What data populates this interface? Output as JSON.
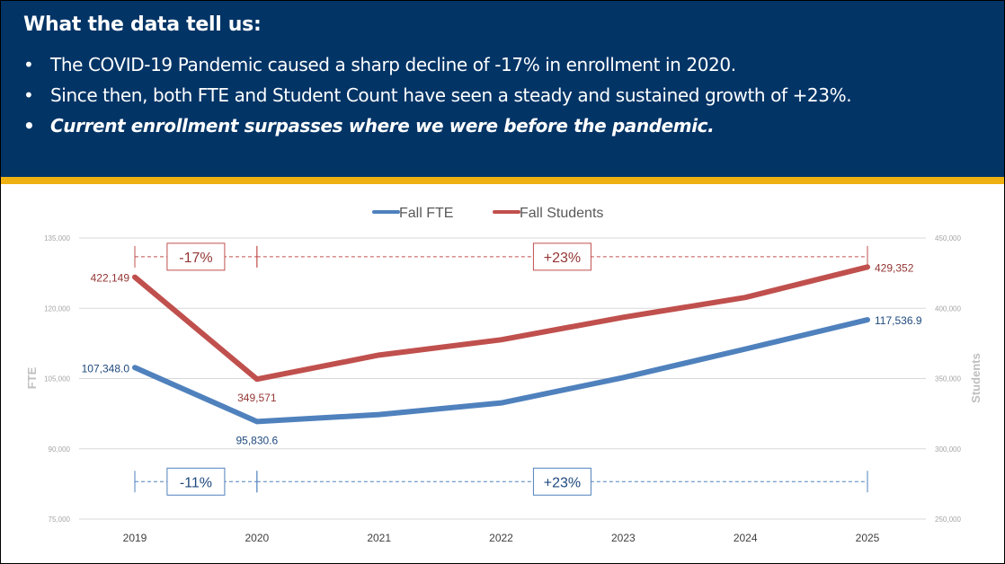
{
  "banner": {
    "title": "What the data tell us:",
    "bullets": [
      {
        "bullet": "•",
        "text": "The COVID-19 Pandemic caused a sharp decline of -17% in enrollment in 2020."
      },
      {
        "bullet": "•",
        "text": "Since then, both FTE and Student Count have seen a steady and sustained growth of +23%."
      },
      {
        "bullet": "•",
        "text": "Current enrollment surpasses where we were before the pandemic."
      }
    ],
    "colors": {
      "background": "#023466",
      "stripe": "#EEB111"
    }
  },
  "chart_data": {
    "type": "line",
    "title": "",
    "categories": [
      "2019",
      "2020",
      "2021",
      "2022",
      "2023",
      "2024",
      "2025"
    ],
    "series": [
      {
        "name": "Fall FTE",
        "axis": "left",
        "color": "#4F81BD",
        "label_color": "#1F497D",
        "values": [
          107348.0,
          95830.6,
          97300,
          99800,
          105200,
          111300,
          117536.9
        ],
        "data_labels": [
          "107,348.0",
          "95,830.6",
          null,
          null,
          null,
          null,
          "117,536.9"
        ]
      },
      {
        "name": "Fall Students",
        "axis": "right",
        "color": "#C0504D",
        "label_color": "#943634",
        "values": [
          422149,
          349571,
          366700,
          377600,
          393600,
          407700,
          429352
        ],
        "data_labels": [
          "422,149",
          "349,571",
          null,
          null,
          null,
          null,
          "429,352"
        ]
      }
    ],
    "ylabel": "FTE",
    "y2label": "Students",
    "ylim": [
      75000,
      135000
    ],
    "y2lim": [
      250000,
      450000
    ],
    "yticks": [
      75000,
      90000,
      105000,
      120000,
      135000
    ],
    "ytick_labels": [
      "75,000",
      "90,000",
      "105,000",
      "120,000",
      "135,000"
    ],
    "y2ticks": [
      250000,
      300000,
      350000,
      400000,
      450000
    ],
    "y2tick_labels": [
      "250,000",
      "300,000",
      "350,000",
      "400,000",
      "450,000"
    ],
    "grid": true,
    "legend": "top-center",
    "annotations": [
      {
        "series": "Fall Students",
        "from": "2019",
        "to": "2020",
        "text": "-17%",
        "level": 131000,
        "axis": "left"
      },
      {
        "series": "Fall Students",
        "from": "2020",
        "to": "2025",
        "text": "+23%",
        "level": 131000,
        "axis": "left"
      },
      {
        "series": "Fall FTE",
        "from": "2019",
        "to": "2020",
        "text": "-11%",
        "level": 83000,
        "axis": "left"
      },
      {
        "series": "Fall FTE",
        "from": "2020",
        "to": "2025",
        "text": "+23%",
        "level": 83000,
        "axis": "left"
      }
    ]
  }
}
